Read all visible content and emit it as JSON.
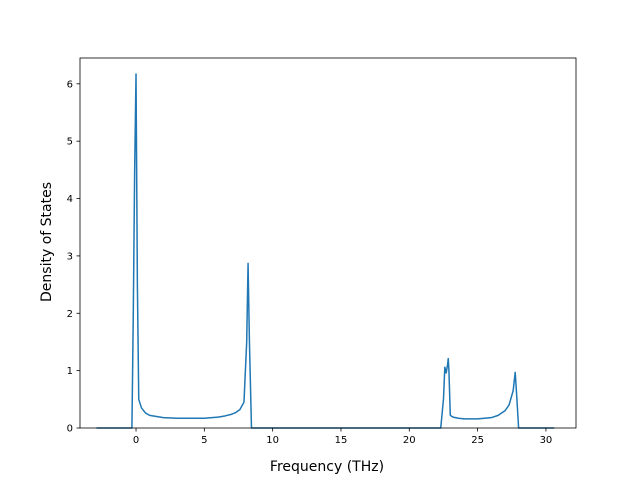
{
  "chart_data": {
    "type": "line",
    "title": "",
    "xlabel": "Frequency (THz)",
    "ylabel": "Density of States",
    "xlim": [
      -4.1,
      32.2
    ],
    "ylim": [
      0,
      6.45
    ],
    "xticks": [
      0,
      5,
      10,
      15,
      20,
      25,
      30
    ],
    "yticks": [
      0,
      1,
      2,
      3,
      4,
      5,
      6
    ],
    "grid": false,
    "legend": "none",
    "series": [
      {
        "color": "#1f77b4",
        "x": [
          -2.9,
          -0.3,
          -0.2,
          -0.1,
          0.0,
          0.1,
          0.2,
          0.4,
          0.7,
          1.0,
          1.5,
          2.0,
          3.0,
          4.0,
          5.0,
          6.0,
          6.5,
          7.0,
          7.3,
          7.6,
          7.9,
          8.1,
          8.2,
          8.3,
          8.45,
          8.6,
          9.0,
          22.3,
          22.5,
          22.6,
          22.7,
          22.8,
          22.85,
          22.9,
          23.0,
          23.2,
          23.6,
          24.0,
          25.0,
          26.0,
          26.5,
          27.0,
          27.3,
          27.6,
          27.75,
          27.85,
          28.0,
          28.3,
          30.6
        ],
        "y": [
          0.0,
          0.0,
          2.0,
          4.5,
          6.17,
          2.5,
          0.5,
          0.35,
          0.26,
          0.22,
          0.2,
          0.18,
          0.17,
          0.17,
          0.17,
          0.19,
          0.21,
          0.24,
          0.27,
          0.32,
          0.45,
          1.5,
          2.87,
          1.5,
          0.0,
          0.0,
          0.0,
          0.0,
          0.5,
          1.06,
          0.96,
          1.1,
          1.21,
          1.0,
          0.22,
          0.19,
          0.17,
          0.16,
          0.16,
          0.18,
          0.22,
          0.3,
          0.4,
          0.65,
          0.97,
          0.6,
          0.0,
          0.0,
          0.0
        ]
      }
    ]
  }
}
